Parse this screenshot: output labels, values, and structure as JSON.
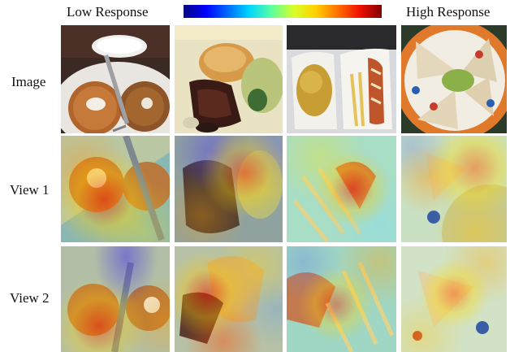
{
  "header": {
    "low_label": "Low Response",
    "high_label": "High Response"
  },
  "colorbar": {
    "colors": [
      "#08087e",
      "#0000ff",
      "#0068ff",
      "#00d6ff",
      "#5cffa0",
      "#d8ff28",
      "#ffd000",
      "#ff7000",
      "#f01000",
      "#800000"
    ]
  },
  "rows": [
    {
      "label": "Image"
    },
    {
      "label": "View 1"
    },
    {
      "label": "View 2"
    }
  ]
}
